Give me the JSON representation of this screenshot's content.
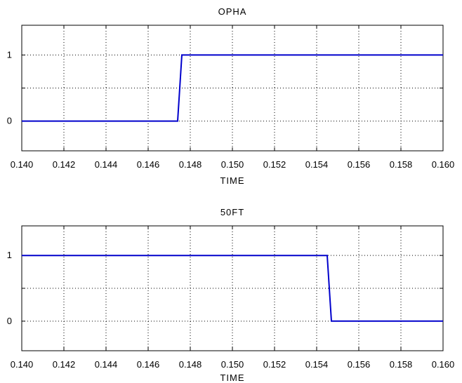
{
  "chart_data": [
    {
      "type": "line",
      "title": "OPHA",
      "xlabel": "TIME",
      "ylabel": "",
      "xlim": [
        0.14,
        0.16
      ],
      "ylim": [
        -0.45,
        1.45
      ],
      "xticks": [
        "0.140",
        "0.142",
        "0.144",
        "0.146",
        "0.148",
        "0.150",
        "0.152",
        "0.154",
        "0.156",
        "0.158",
        "0.160"
      ],
      "yticks": [
        "0",
        "1"
      ],
      "y_gridlines": [
        0,
        0.5,
        1
      ],
      "grid": true,
      "color": "#0000cc",
      "series": [
        {
          "x": [
            0.14,
            0.1474,
            0.1476,
            0.16
          ],
          "y": [
            0,
            0,
            1,
            1
          ]
        }
      ]
    },
    {
      "type": "line",
      "title": "50FT",
      "xlabel": "TIME",
      "ylabel": "",
      "xlim": [
        0.14,
        0.16
      ],
      "ylim": [
        -0.45,
        1.45
      ],
      "xticks": [
        "0.140",
        "0.142",
        "0.144",
        "0.146",
        "0.148",
        "0.150",
        "0.152",
        "0.154",
        "0.156",
        "0.158",
        "0.160"
      ],
      "yticks": [
        "1",
        "0"
      ],
      "y_gridlines": [
        0,
        0.5,
        1
      ],
      "grid": true,
      "color": "#0000cc",
      "series": [
        {
          "x": [
            0.14,
            0.1545,
            0.1547,
            0.16
          ],
          "y": [
            1,
            1,
            0,
            0
          ]
        }
      ]
    }
  ]
}
